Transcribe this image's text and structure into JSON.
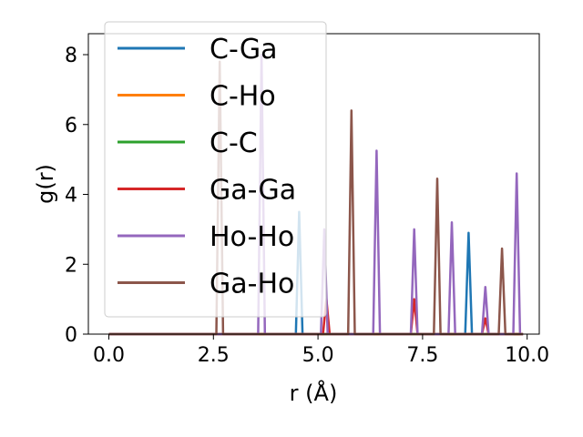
{
  "chart_data": {
    "type": "line",
    "xlabel": "r (Å)",
    "ylabel": "g(r)",
    "xlim": [
      -0.49,
      10.29
    ],
    "ylim": [
      0,
      8.6
    ],
    "xticks": [
      0.0,
      2.5,
      5.0,
      7.5,
      10.0
    ],
    "xtick_labels": [
      "0.0",
      "2.5",
      "5.0",
      "7.5",
      "10.0"
    ],
    "yticks": [
      0,
      2,
      4,
      6,
      8
    ],
    "ytick_labels": [
      "0",
      "2",
      "4",
      "6",
      "8"
    ],
    "grid": false,
    "legend_position": "upper-left",
    "x_range": [
      0.0,
      9.9
    ],
    "series": [
      {
        "name": "C-Ga",
        "color": "#1f77b4",
        "peaks": [
          [
            4.55,
            3.5
          ],
          [
            8.6,
            2.9
          ]
        ]
      },
      {
        "name": "C-Ho",
        "color": "#ff7f0e",
        "peaks": []
      },
      {
        "name": "C-C",
        "color": "#2ca02c",
        "peaks": []
      },
      {
        "name": "Ga-Ga",
        "color": "#d62728",
        "peaks": [
          [
            5.2,
            1.0
          ],
          [
            7.3,
            1.0
          ],
          [
            9.0,
            0.45
          ]
        ]
      },
      {
        "name": "Ho-Ho",
        "color": "#9467bd",
        "peaks": [
          [
            3.65,
            8.0
          ],
          [
            5.15,
            3.0
          ],
          [
            6.4,
            5.25
          ],
          [
            7.3,
            3.0
          ],
          [
            8.2,
            3.2
          ],
          [
            9.0,
            1.35
          ],
          [
            9.75,
            4.6
          ]
        ]
      },
      {
        "name": "Ga-Ho",
        "color": "#8c564b",
        "peaks": [
          [
            2.65,
            7.8
          ],
          [
            5.8,
            6.4
          ],
          [
            7.85,
            4.45
          ],
          [
            9.4,
            2.45
          ]
        ]
      }
    ]
  }
}
